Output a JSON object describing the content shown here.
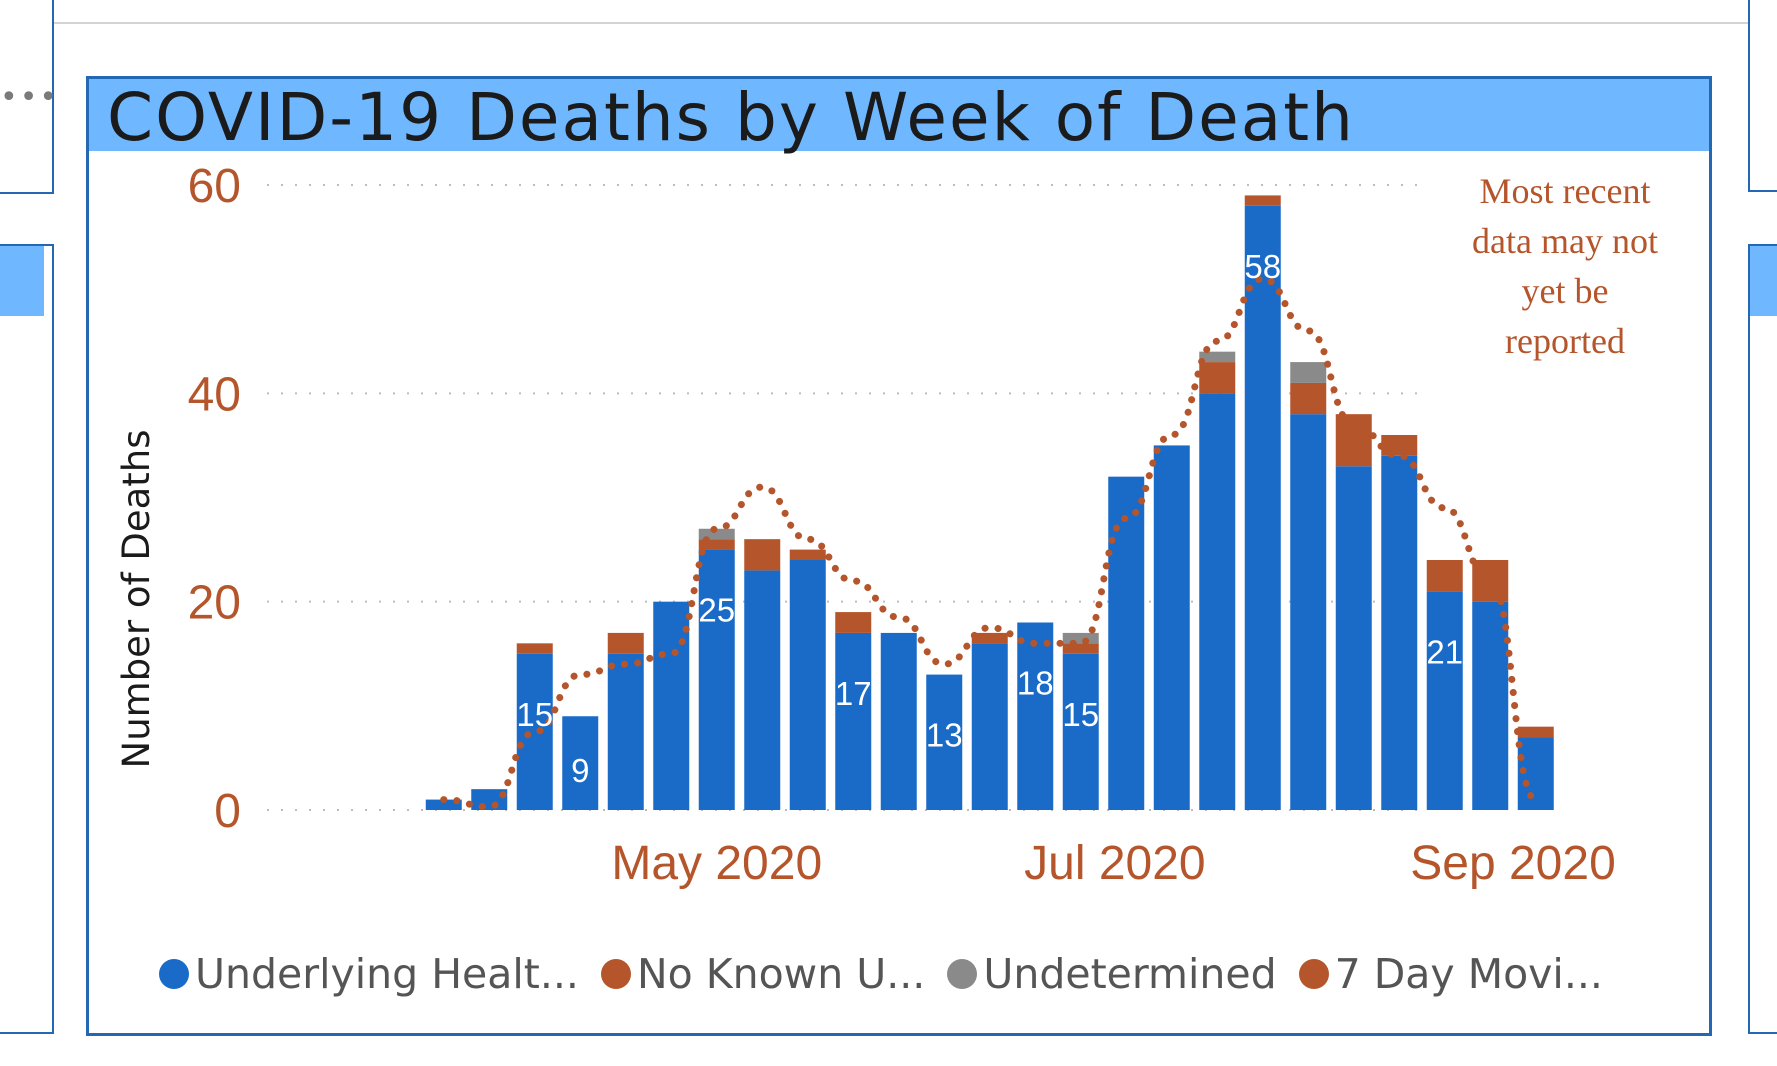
{
  "chart_data": {
    "type": "bar",
    "title": "COVID-19 Deaths by Week of Death",
    "ylabel": "Number of Deaths",
    "xlabel": "",
    "ylim": [
      0,
      60
    ],
    "yticks": [
      "0",
      "20",
      "40",
      "60"
    ],
    "xticks": [
      {
        "label": "May 2020",
        "week": 6.5
      },
      {
        "label": "Jul 2020",
        "week": 15.25
      },
      {
        "label": "Sep 2020",
        "week": 24
      }
    ],
    "stacked": true,
    "series": [
      {
        "name": "Underlying Health Conditions",
        "color": "#1a6ac8",
        "values": [
          1,
          2,
          15,
          9,
          15,
          20,
          25,
          23,
          24,
          17,
          17,
          13,
          16,
          18,
          15,
          32,
          35,
          40,
          58,
          38,
          33,
          34,
          21,
          20,
          7
        ]
      },
      {
        "name": "No Known Underlying Conditions",
        "color": "#b5552b",
        "values": [
          0,
          0,
          1,
          0,
          2,
          0,
          1,
          3,
          1,
          2,
          0,
          0,
          1,
          0,
          1,
          0,
          0,
          3,
          1,
          3,
          5,
          2,
          3,
          4,
          1
        ]
      },
      {
        "name": "Undetermined",
        "color": "#8a8a8a",
        "values": [
          0,
          0,
          0,
          0,
          0,
          0,
          1,
          0,
          0,
          0,
          0,
          0,
          0,
          0,
          1,
          0,
          0,
          1,
          0,
          2,
          0,
          0,
          0,
          0,
          0
        ]
      }
    ],
    "moving_average": {
      "name": "7 Day Moving Average",
      "color": "#b5552b",
      "values": [
        1,
        0.3,
        7.5,
        13,
        14,
        15,
        27,
        31,
        26,
        22,
        18.5,
        14,
        17.5,
        16,
        16,
        28,
        36,
        45,
        51,
        46,
        37,
        34,
        29,
        22,
        1
      ]
    },
    "data_labels": [
      {
        "index": 2,
        "text": "15"
      },
      {
        "index": 3,
        "text": "9"
      },
      {
        "index": 6,
        "text": "25"
      },
      {
        "index": 9,
        "text": "17"
      },
      {
        "index": 11,
        "text": "13"
      },
      {
        "index": 13,
        "text": "18"
      },
      {
        "index": 14,
        "text": "15"
      },
      {
        "index": 18,
        "text": "58"
      },
      {
        "index": 22,
        "text": "21"
      }
    ],
    "annotation": [
      "Most recent",
      "data may not",
      "yet be",
      "reported"
    ],
    "legend": [
      {
        "label": "Underlying Healt...",
        "color": "#1a6ac8"
      },
      {
        "label": "No Known U...",
        "color": "#b5552b"
      },
      {
        "label": "Undetermined",
        "color": "#8a8a8a"
      },
      {
        "label": "7 Day Movi...",
        "color": "#b5552b"
      }
    ],
    "legend_position": "bottom"
  }
}
